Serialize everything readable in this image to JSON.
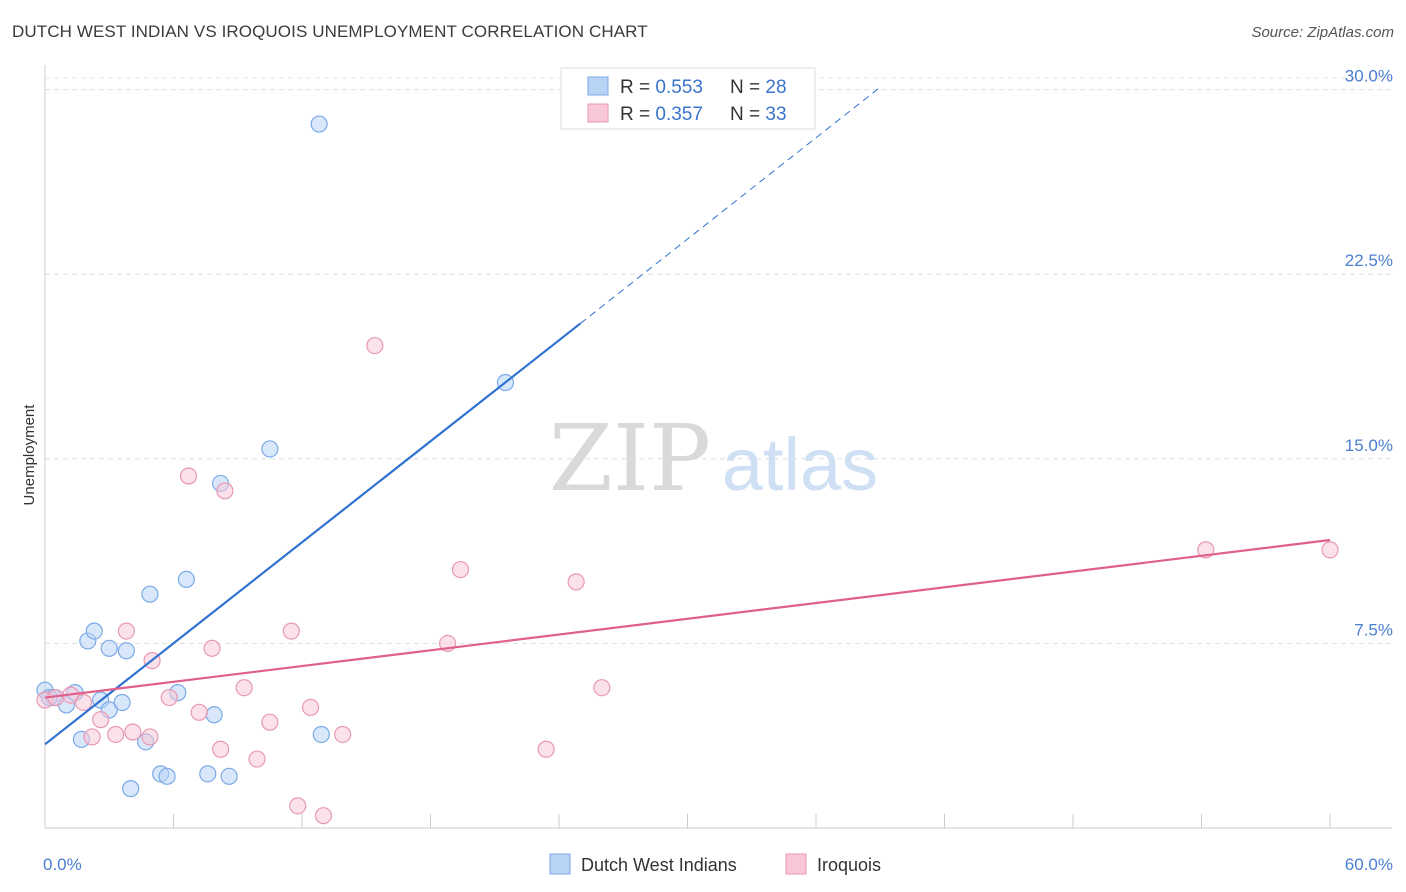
{
  "title": "DUTCH WEST INDIAN VS IROQUOIS UNEMPLOYMENT CORRELATION CHART",
  "source": "Source: ZipAtlas.com",
  "watermark": {
    "zip": "ZIP",
    "atlas": "atlas"
  },
  "chart_data": {
    "type": "scatter",
    "xlabel": "",
    "ylabel": "Unemployment",
    "xlim": [
      0,
      60
    ],
    "ylim": [
      0,
      31
    ],
    "x_tick_labels": {
      "min": "0.0%",
      "max": "60.0%"
    },
    "y_ticks": [
      {
        "value": 7.5,
        "label": "7.5%"
      },
      {
        "value": 15.0,
        "label": "15.0%"
      },
      {
        "value": 22.5,
        "label": "22.5%"
      },
      {
        "value": 30.0,
        "label": "30.0%"
      }
    ],
    "legend": [
      {
        "r_label": "R = ",
        "r_value": "0.553",
        "n_label": "N = ",
        "n_value": "28"
      },
      {
        "r_label": "R = ",
        "r_value": "0.357",
        "n_label": "N = ",
        "n_value": "33"
      }
    ],
    "series": [
      {
        "name": "Dutch West Indians",
        "color": "#7aaae8",
        "fill": "#b9d3f5",
        "trend_color": "#2f72d2",
        "trend": {
          "x0": 0,
          "y0": 3.4,
          "x1": 25,
          "y1": 20.5,
          "dash_x1": 39,
          "dash_y1": 30.1
        },
        "points": [
          [
            0.0,
            5.6
          ],
          [
            0.4,
            5.3
          ],
          [
            1.0,
            5.0
          ],
          [
            1.4,
            5.5
          ],
          [
            1.7,
            3.6
          ],
          [
            2.0,
            7.6
          ],
          [
            2.3,
            8.0
          ],
          [
            2.6,
            5.2
          ],
          [
            3.0,
            4.8
          ],
          [
            3.0,
            7.3
          ],
          [
            3.6,
            5.1
          ],
          [
            3.8,
            7.2
          ],
          [
            4.0,
            1.6
          ],
          [
            4.7,
            3.5
          ],
          [
            4.9,
            9.5
          ],
          [
            5.4,
            2.2
          ],
          [
            5.7,
            2.1
          ],
          [
            6.2,
            5.5
          ],
          [
            6.6,
            10.1
          ],
          [
            7.6,
            2.2
          ],
          [
            7.9,
            4.6
          ],
          [
            8.2,
            14.0
          ],
          [
            8.6,
            2.1
          ],
          [
            10.5,
            15.4
          ],
          [
            12.8,
            28.6
          ],
          [
            12.9,
            3.8
          ],
          [
            21.5,
            18.1
          ],
          [
            0.2,
            5.3
          ]
        ]
      },
      {
        "name": "Iroquois",
        "color": "#e898b2",
        "fill": "#f8c8d7",
        "trend_color": "#e0608c",
        "trend": {
          "x0": 0,
          "y0": 5.3,
          "x1": 60,
          "y1": 11.7
        },
        "points": [
          [
            0.0,
            5.2
          ],
          [
            0.5,
            5.3
          ],
          [
            1.2,
            5.4
          ],
          [
            1.8,
            5.1
          ],
          [
            2.2,
            3.7
          ],
          [
            2.6,
            4.4
          ],
          [
            3.3,
            3.8
          ],
          [
            3.8,
            8.0
          ],
          [
            4.1,
            3.9
          ],
          [
            4.9,
            3.7
          ],
          [
            5.0,
            6.8
          ],
          [
            5.8,
            5.3
          ],
          [
            6.7,
            14.3
          ],
          [
            7.2,
            4.7
          ],
          [
            7.8,
            7.3
          ],
          [
            8.2,
            3.2
          ],
          [
            8.4,
            13.7
          ],
          [
            9.3,
            5.7
          ],
          [
            9.9,
            2.8
          ],
          [
            10.5,
            4.3
          ],
          [
            11.5,
            8.0
          ],
          [
            11.8,
            0.9
          ],
          [
            12.4,
            4.9
          ],
          [
            13.0,
            0.5
          ],
          [
            13.9,
            3.8
          ],
          [
            15.4,
            19.6
          ],
          [
            18.8,
            7.5
          ],
          [
            19.4,
            10.5
          ],
          [
            23.4,
            3.2
          ],
          [
            24.8,
            10.0
          ],
          [
            26.0,
            5.7
          ],
          [
            54.2,
            11.3
          ],
          [
            60.0,
            11.3
          ]
        ]
      }
    ]
  }
}
